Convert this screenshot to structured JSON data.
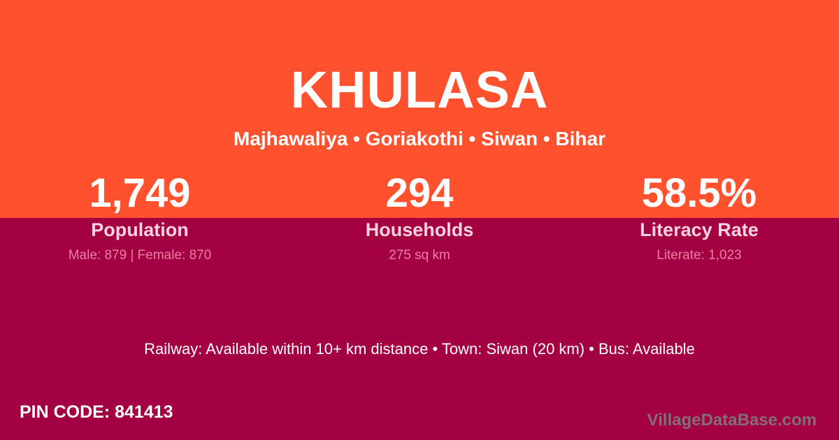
{
  "colors": {
    "top_band": "#FF512D",
    "bottom_band": "#A40143",
    "stat_label": "#FBD2DF",
    "stat_detail": "#EF7FA4",
    "text": "#FFFFFF",
    "watermark": "#808080"
  },
  "header": {
    "title": "KHULASA",
    "subtitle": "Majhawaliya • Goriakothi • Siwan • Bihar"
  },
  "stats": [
    {
      "value": "1,749",
      "label": "Population",
      "detail": "Male: 879 | Female: 870"
    },
    {
      "value": "294",
      "label": "Households",
      "detail": "275 sq km"
    },
    {
      "value": "58.5%",
      "label": "Literacy Rate",
      "detail": "Literate: 1,023"
    }
  ],
  "transport": {
    "line": "Railway: Available within 10+ km distance  •  Town: Siwan (20 km)  •  Bus: Available"
  },
  "footer": {
    "pin_code": "PIN CODE: 841413",
    "watermark": "VillageDataBase.com"
  }
}
